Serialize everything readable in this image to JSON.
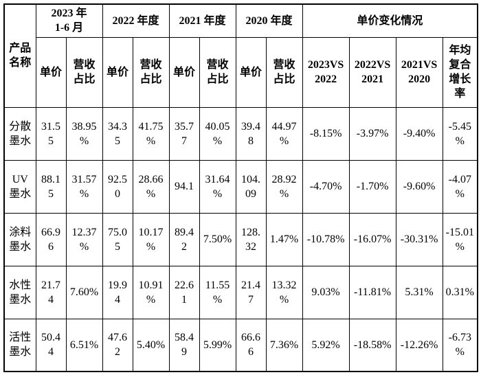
{
  "page": {
    "background": "#ffffff",
    "border_color": "#000000",
    "text_color": "#000000"
  },
  "header": {
    "product": "产品名称",
    "change_title": "单价变化情况",
    "periods": [
      {
        "title": "2023 年\n1-6 月",
        "unit_price": "单价",
        "revenue_share": "营收占比"
      },
      {
        "title": "2022 年度",
        "unit_price": "单价",
        "revenue_share": "营收占比"
      },
      {
        "title": "2021 年度",
        "unit_price": "单价",
        "revenue_share": "营收占比"
      },
      {
        "title": "2020 年度",
        "unit_price": "单价",
        "revenue_share": "营收占比"
      }
    ],
    "change_cols": [
      "2023VS2022",
      "2022VS2021",
      "2021VS2020",
      "年均复合增长率"
    ]
  },
  "rows": [
    {
      "name": "分散墨水",
      "values": [
        "31.55",
        "38.95%",
        "34.35",
        "41.75%",
        "35.77",
        "40.05%",
        "39.48",
        "44.97%",
        "-8.15%",
        "-3.97%",
        "-9.40%",
        "-5.45%"
      ]
    },
    {
      "name": "UV墨水",
      "values": [
        "88.15",
        "31.57%",
        "92.50",
        "28.66%",
        "94.1",
        "31.64%",
        "104.09",
        "28.92%",
        "-4.70%",
        "-1.70%",
        "-9.60%",
        "-4.07%"
      ]
    },
    {
      "name": "涂料墨水",
      "values": [
        "66.96",
        "12.37%",
        "75.05",
        "10.17%",
        "89.42",
        "7.50%",
        "128.32",
        "1.47%",
        "-10.78%",
        "-16.07%",
        "-30.31%",
        "-15.01%"
      ]
    },
    {
      "name": "水性墨水",
      "values": [
        "21.74",
        "7.60%",
        "19.94",
        "10.91%",
        "22.61",
        "11.55%",
        "21.47",
        "13.32%",
        "9.03%",
        "-11.81%",
        "5.31%",
        "0.31%"
      ]
    },
    {
      "name": "活性墨水",
      "values": [
        "50.44",
        "6.51%",
        "47.62",
        "5.40%",
        "58.49",
        "5.99%",
        "66.66",
        "7.36%",
        "5.92%",
        "-18.58%",
        "-12.26%",
        "-6.73%"
      ]
    }
  ]
}
